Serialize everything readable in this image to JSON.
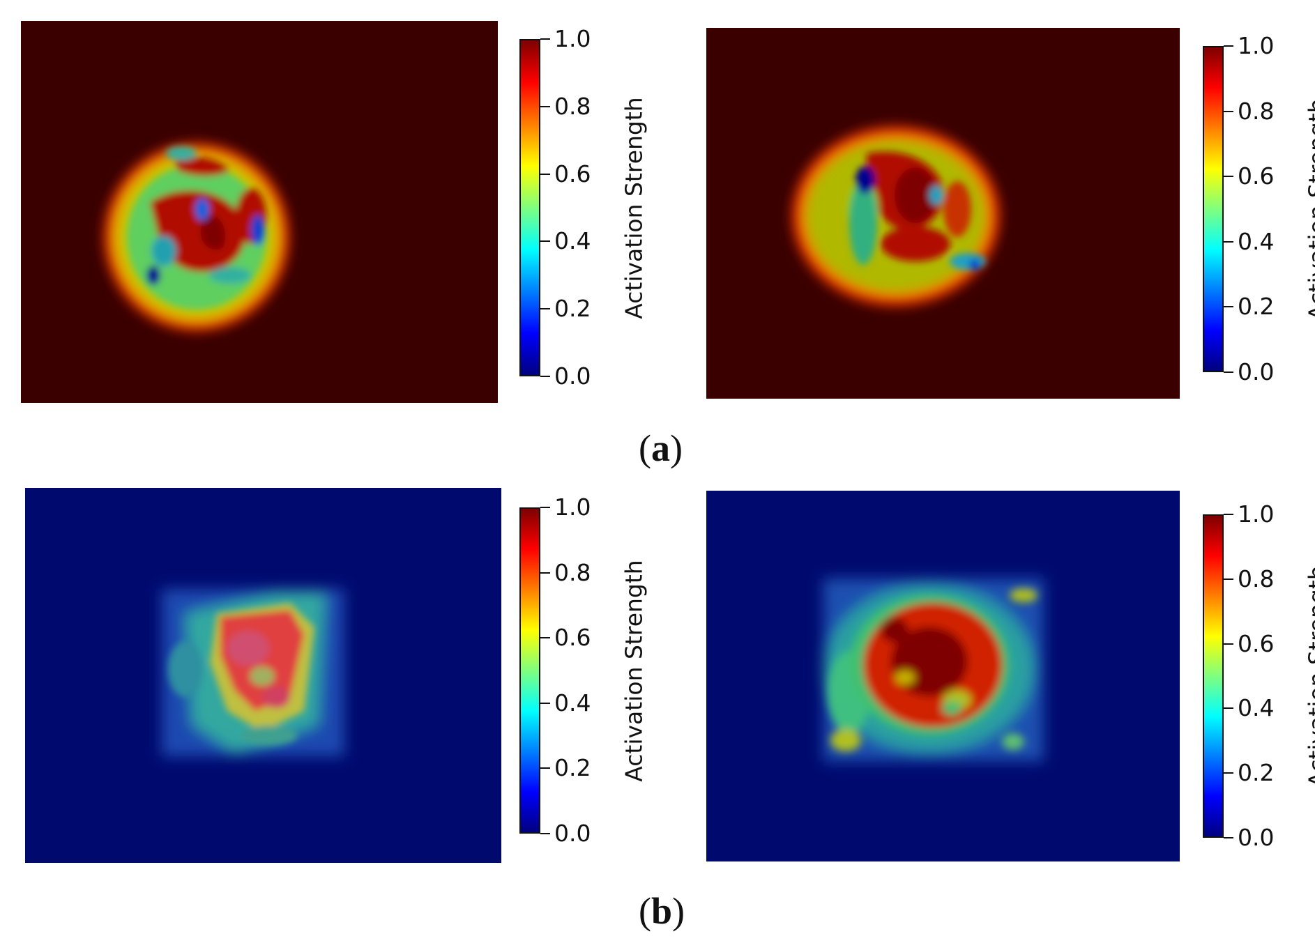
{
  "chart_data": [
    {
      "type": "heatmap",
      "group": "a",
      "colormap": "jet",
      "background_value": 1.0,
      "blob_shape": "circle",
      "colorbar": {
        "label": "Activation Strength",
        "range": [
          0.0,
          1.0
        ],
        "ticks": [
          "0.0",
          "0.2",
          "0.4",
          "0.6",
          "0.8",
          "1.0"
        ]
      }
    },
    {
      "type": "heatmap",
      "group": "a",
      "colormap": "jet",
      "background_value": 1.0,
      "blob_shape": "circle",
      "colorbar": {
        "label": "Activation Strength",
        "range": [
          0.0,
          1.0
        ],
        "ticks": [
          "0.0",
          "0.2",
          "0.4",
          "0.6",
          "0.8",
          "1.0"
        ]
      }
    },
    {
      "type": "heatmap",
      "group": "b",
      "colormap": "jet",
      "background_value": 0.05,
      "blob_shape": "square",
      "colorbar": {
        "label": "Activation Strength",
        "range": [
          0.0,
          1.0
        ],
        "ticks": [
          "0.0",
          "0.2",
          "0.4",
          "0.6",
          "0.8",
          "1.0"
        ]
      }
    },
    {
      "type": "heatmap",
      "group": "b",
      "colormap": "jet",
      "background_value": 0.05,
      "blob_shape": "square",
      "colorbar": {
        "label": "Activation Strength",
        "range": [
          0.0,
          1.0
        ],
        "ticks": [
          "0.0",
          "0.2",
          "0.4",
          "0.6",
          "0.8",
          "1.0"
        ]
      }
    }
  ],
  "labels": {
    "a": "a",
    "b": "b"
  },
  "colors": {
    "jet_stops": [
      "#00007f",
      "#0000ff",
      "#007fff",
      "#00ffff",
      "#7fff7f",
      "#ffff00",
      "#ff7f00",
      "#ff0000",
      "#7f0000"
    ],
    "dark_red_bg": "#3a0000",
    "dark_blue_bg": "#000a6e"
  }
}
